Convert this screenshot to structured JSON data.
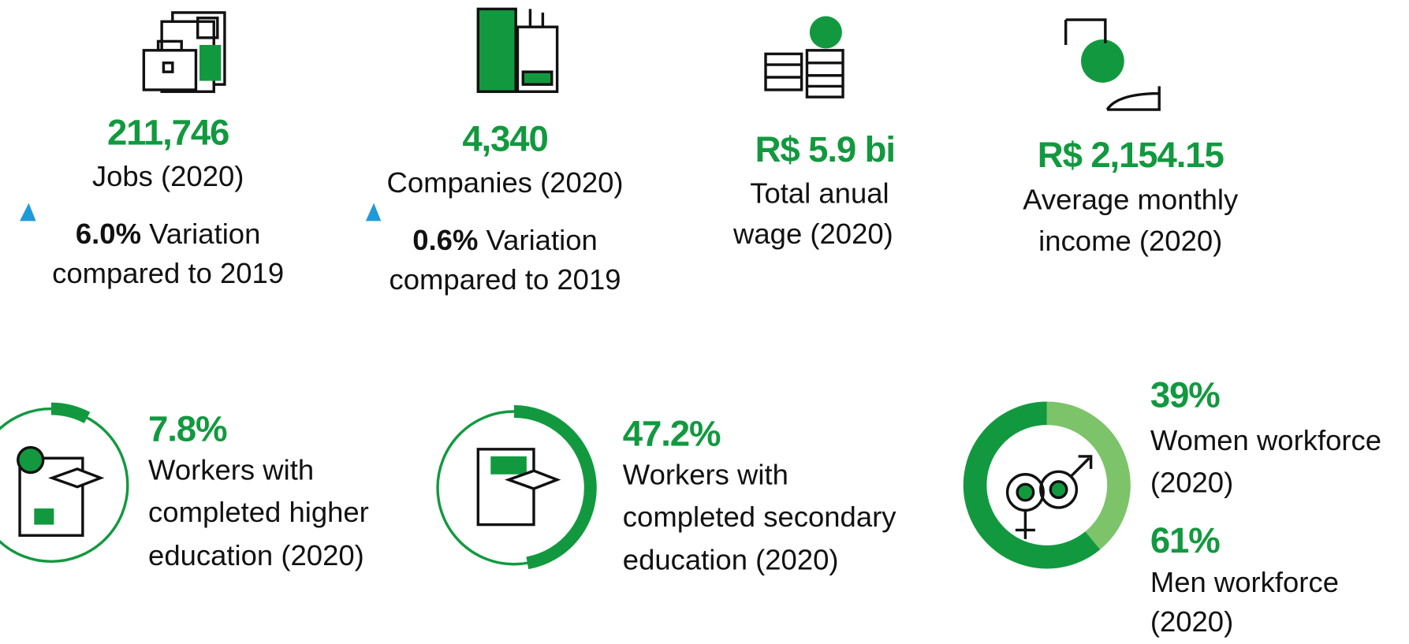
{
  "stats": [
    {
      "value": "211,746",
      "lines": [
        "Jobs (2020)"
      ],
      "variation": {
        "value": "6.0%",
        "lines": [
          "Variation",
          "compared to 2019"
        ]
      }
    },
    {
      "value": "4,340",
      "lines": [
        "Companies (2020)"
      ],
      "variation": {
        "value": "0.6%",
        "lines": [
          "Variation",
          "compared to 2019"
        ]
      }
    },
    {
      "value": "R$ 5.9 bi",
      "lines": [
        "Total anual",
        "wage (2020)"
      ]
    },
    {
      "value": "R$ 2,154.15",
      "lines": [
        "Average monthly",
        "income (2020)"
      ]
    }
  ],
  "education": [
    {
      "value": 7.8,
      "label": "7.8%",
      "lines": [
        "Workers with",
        "completed higher",
        "education (2020)"
      ]
    },
    {
      "value": 47.2,
      "label": "47.2%",
      "lines": [
        "Workers with",
        "completed secondary",
        "education (2020)"
      ]
    }
  ],
  "gender": [
    {
      "value": 39,
      "label": "39%",
      "lines": [
        "Women workforce",
        "(2020)"
      ],
      "color": "#7cc36a"
    },
    {
      "value": 61,
      "label": "61%",
      "lines": [
        "Men workforce",
        "(2020)"
      ],
      "color": "#12993f"
    }
  ]
}
